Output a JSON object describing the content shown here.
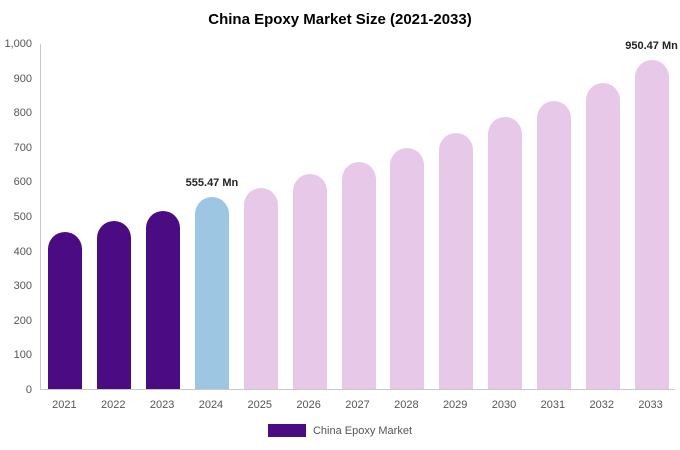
{
  "chart_data": {
    "type": "bar",
    "title": "China Epoxy Market Size (2021-2033)",
    "xlabel": "",
    "ylabel": "",
    "categories": [
      "2021",
      "2022",
      "2023",
      "2024",
      "2025",
      "2026",
      "2027",
      "2028",
      "2029",
      "2030",
      "2031",
      "2032",
      "2033"
    ],
    "values": [
      455,
      487,
      515,
      555.47,
      582,
      622,
      657,
      697,
      740,
      786,
      832,
      885,
      950.47
    ],
    "unit": "Mn",
    "point_labels": [
      "",
      "",
      "",
      "555.47 Mn",
      "",
      "",
      "",
      "",
      "",
      "",
      "",
      "",
      "950.47 Mn"
    ],
    "bar_colors": [
      "#4B0B82",
      "#4B0B82",
      "#4B0B82",
      "#9DC6E3",
      "#E8C8E8",
      "#E8C8E8",
      "#E8C8E8",
      "#E8C8E8",
      "#E8C8E8",
      "#E8C8E8",
      "#E8C8E8",
      "#E8C8E8",
      "#E8C8E8"
    ],
    "ylim": [
      0,
      1000
    ],
    "ytick_labels": [
      "0",
      "100",
      "200",
      "300",
      "400",
      "500",
      "600",
      "700",
      "800",
      "900",
      "1,000"
    ],
    "grid": false,
    "legend_position": "bottom",
    "legend": "China Epoxy Market",
    "legend_color": "#4B0B82"
  }
}
